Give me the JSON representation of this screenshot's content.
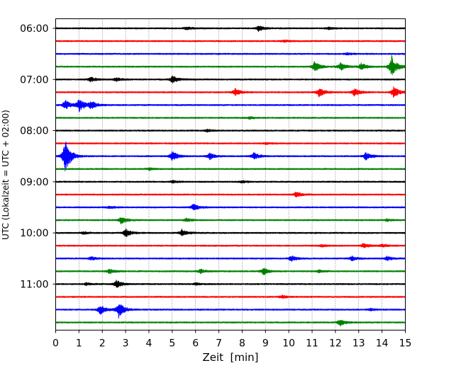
{
  "chart_data": {
    "type": "line",
    "title": "",
    "xlabel": "Zeit  [min]",
    "ylabel": "UTC (Lokalzeit = UTC + 02:00)",
    "xlim": [
      0,
      15
    ],
    "x_ticks": [
      "0",
      "1",
      "2",
      "3",
      "4",
      "5",
      "6",
      "7",
      "8",
      "9",
      "10",
      "11",
      "12",
      "13",
      "14",
      "15"
    ],
    "y_tick_labels": [
      "06:00",
      "07:00",
      "08:00",
      "09:00",
      "10:00",
      "11:00"
    ],
    "y_tick_traces": [
      0,
      4,
      8,
      12,
      16,
      20
    ],
    "trace_interval_min": 15,
    "grid": "vertical-dotted",
    "colors": [
      "#000000",
      "#ff0000",
      "#0000ff",
      "#008000"
    ],
    "series": [
      {
        "time": "06:00",
        "color": "#000000",
        "events": [
          {
            "t": 8.7,
            "amp": 0.25
          },
          {
            "t": 5.6,
            "amp": 0.12
          },
          {
            "t": 11.7,
            "amp": 0.1
          }
        ]
      },
      {
        "time": "06:15",
        "color": "#ff0000",
        "events": [
          {
            "t": 9.8,
            "amp": 0.08
          }
        ]
      },
      {
        "time": "06:30",
        "color": "#0000ff",
        "events": [
          {
            "t": 12.5,
            "amp": 0.08
          }
        ]
      },
      {
        "time": "06:45",
        "color": "#008000",
        "events": [
          {
            "t": 11.1,
            "amp": 0.45
          },
          {
            "t": 12.2,
            "amp": 0.35
          },
          {
            "t": 13.1,
            "amp": 0.3
          },
          {
            "t": 14.4,
            "amp": 1.0
          }
        ]
      },
      {
        "time": "07:00",
        "color": "#000000",
        "events": [
          {
            "t": 5.0,
            "amp": 0.35
          },
          {
            "t": 1.5,
            "amp": 0.2
          },
          {
            "t": 2.6,
            "amp": 0.15
          }
        ]
      },
      {
        "time": "07:15",
        "color": "#ff0000",
        "events": [
          {
            "t": 7.7,
            "amp": 0.3
          },
          {
            "t": 11.3,
            "amp": 0.4
          },
          {
            "t": 12.8,
            "amp": 0.35
          },
          {
            "t": 14.5,
            "amp": 0.5
          }
        ]
      },
      {
        "time": "07:30",
        "color": "#0000ff",
        "events": [
          {
            "t": 0.4,
            "amp": 0.45
          },
          {
            "t": 1.0,
            "amp": 0.6
          },
          {
            "t": 1.5,
            "amp": 0.35
          }
        ]
      },
      {
        "time": "07:45",
        "color": "#008000",
        "events": [
          {
            "t": 8.3,
            "amp": 0.1
          }
        ]
      },
      {
        "time": "08:00",
        "color": "#000000",
        "events": [
          {
            "t": 6.5,
            "amp": 0.1
          }
        ]
      },
      {
        "time": "08:15",
        "color": "#ff0000",
        "events": [
          {
            "t": 9.0,
            "amp": 0.08
          }
        ]
      },
      {
        "time": "08:30",
        "color": "#0000ff",
        "events": [
          {
            "t": 0.4,
            "amp": 1.6
          },
          {
            "t": 5.0,
            "amp": 0.45
          },
          {
            "t": 6.6,
            "amp": 0.3
          },
          {
            "t": 8.5,
            "amp": 0.3
          },
          {
            "t": 13.3,
            "amp": 0.35
          }
        ]
      },
      {
        "time": "08:45",
        "color": "#008000",
        "events": [
          {
            "t": 4.0,
            "amp": 0.1
          }
        ]
      },
      {
        "time": "09:00",
        "color": "#000000",
        "events": [
          {
            "t": 5.0,
            "amp": 0.12
          },
          {
            "t": 8.0,
            "amp": 0.1
          }
        ]
      },
      {
        "time": "09:15",
        "color": "#ff0000",
        "events": [
          {
            "t": 10.3,
            "amp": 0.25
          }
        ]
      },
      {
        "time": "09:30",
        "color": "#0000ff",
        "events": [
          {
            "t": 5.9,
            "amp": 0.3
          },
          {
            "t": 2.3,
            "amp": 0.1
          }
        ]
      },
      {
        "time": "09:45",
        "color": "#008000",
        "events": [
          {
            "t": 2.8,
            "amp": 0.3
          },
          {
            "t": 5.6,
            "amp": 0.15
          },
          {
            "t": 14.2,
            "amp": 0.1
          }
        ]
      },
      {
        "time": "10:00",
        "color": "#000000",
        "events": [
          {
            "t": 3.0,
            "amp": 0.35
          },
          {
            "t": 5.4,
            "amp": 0.3
          },
          {
            "t": 1.2,
            "amp": 0.1
          }
        ]
      },
      {
        "time": "10:15",
        "color": "#ff0000",
        "events": [
          {
            "t": 13.2,
            "amp": 0.2
          },
          {
            "t": 14.0,
            "amp": 0.15
          },
          {
            "t": 11.4,
            "amp": 0.1
          }
        ]
      },
      {
        "time": "10:30",
        "color": "#0000ff",
        "events": [
          {
            "t": 1.5,
            "amp": 0.15
          },
          {
            "t": 10.1,
            "amp": 0.25
          },
          {
            "t": 12.7,
            "amp": 0.2
          },
          {
            "t": 14.2,
            "amp": 0.2
          }
        ]
      },
      {
        "time": "10:45",
        "color": "#008000",
        "events": [
          {
            "t": 8.9,
            "amp": 0.35
          },
          {
            "t": 2.3,
            "amp": 0.2
          },
          {
            "t": 6.2,
            "amp": 0.2
          },
          {
            "t": 11.3,
            "amp": 0.12
          }
        ]
      },
      {
        "time": "11:00",
        "color": "#000000",
        "events": [
          {
            "t": 2.6,
            "amp": 0.35
          },
          {
            "t": 1.3,
            "amp": 0.1
          },
          {
            "t": 6.0,
            "amp": 0.08
          }
        ]
      },
      {
        "time": "11:15",
        "color": "#ff0000",
        "events": [
          {
            "t": 9.7,
            "amp": 0.12
          }
        ]
      },
      {
        "time": "11:30",
        "color": "#0000ff",
        "events": [
          {
            "t": 2.7,
            "amp": 0.7
          },
          {
            "t": 1.9,
            "amp": 0.45
          },
          {
            "t": 13.5,
            "amp": 0.1
          }
        ]
      },
      {
        "time": "11:45",
        "color": "#008000",
        "events": [
          {
            "t": 12.2,
            "amp": 0.3
          }
        ]
      }
    ]
  }
}
